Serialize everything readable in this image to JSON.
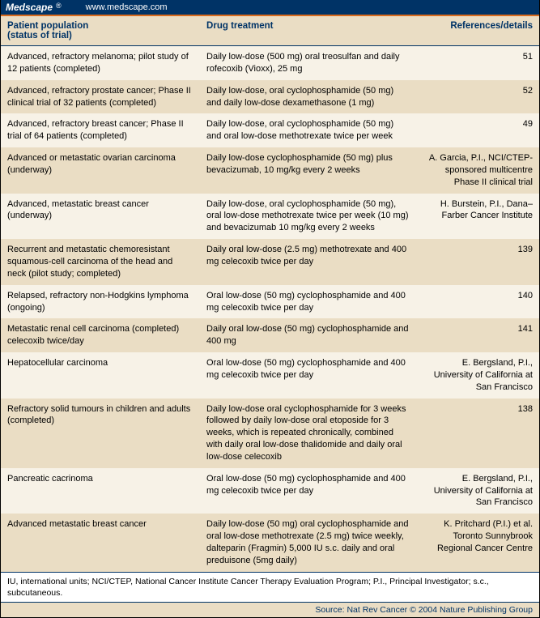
{
  "topbar": {
    "brand": "Medscape",
    "reg": "®",
    "url": "www.medscape.com"
  },
  "headers": {
    "col1a": "Patient population",
    "col1b": "(status of trial)",
    "col2": "Drug treatment",
    "col3": "References/details"
  },
  "rows": [
    {
      "pop": "Advanced, refractory melanoma; pilot study of 12 patients (completed)",
      "drug": "Daily low-dose (500 mg) oral treosulfan and daily rofecoxib (Vioxx), 25 mg",
      "ref": "51"
    },
    {
      "pop": "Advanced, refractory prostate cancer; Phase II clinical trial of 32 patients (completed)",
      "drug": "Daily low-dose, oral cyclophosphamide (50 mg) and daily low-dose dexamethasone (1 mg)",
      "ref": "52"
    },
    {
      "pop": "Advanced, refractory breast cancer; Phase II trial of 64 patients (completed)",
      "drug": "Daily low-dose, oral cyclophosphamide (50 mg) and oral low-dose methotrexate twice per week",
      "ref": "49"
    },
    {
      "pop": "Advanced or metastatic ovarian carcinoma (underway)",
      "drug": "Daily low-dose cyclophosphamide (50 mg) plus bevacizumab, 10 mg/kg every 2 weeks",
      "ref": "A. Garcia, P.I., NCI/CTEP-sponsored multicentre Phase II clinical trial"
    },
    {
      "pop": "Advanced, metastatic breast cancer (underway)",
      "drug": "Daily low-dose, oral cyclophosphamide (50 mg), oral low-dose methotrexate twice per week (10 mg) and bevacizumab 10 mg/kg every 2 weeks",
      "ref": "H. Burstein, P.I., Dana–Farber Cancer Institute"
    },
    {
      "pop": "Recurrent and metastatic chemoresistant squamous-cell carcinoma of the head and neck (pilot study; completed)",
      "drug": "Daily oral low-dose (2.5 mg) methotrexate and 400 mg celecoxib twice per day",
      "ref": "139"
    },
    {
      "pop": "Relapsed, refractory non-Hodgkins lymphoma (ongoing)",
      "drug": "Oral low-dose (50 mg) cyclophosphamide and 400 mg celecoxib twice per day",
      "ref": "140"
    },
    {
      "pop": "Metastatic renal cell carcinoma (completed) celecoxib twice/day",
      "drug": "Daily oral low-dose (50 mg) cyclophosphamide and 400 mg",
      "ref": "141"
    },
    {
      "pop": "Hepatocellular carcinoma",
      "drug": "Oral low-dose (50 mg) cyclophosphamide and 400 mg celecoxib twice per day",
      "ref": "E. Bergsland, P.I., University of California at San Francisco"
    },
    {
      "pop": "Refractory solid tumours in children and adults (completed)",
      "drug": "Daily low-dose oral cyclophosphamide for 3 weeks followed by daily low-dose oral etoposide for 3 weeks, which is repeated chronically, combined with daily oral low-dose thalidomide and daily oral low-dose celecoxib",
      "ref": "138"
    },
    {
      "pop": "Pancreatic cacrinoma",
      "drug": "Oral low-dose (50 mg) cyclophosphamide and 400 mg celecoxib twice per day",
      "ref": "E. Bergsland, P.I., University of California at San Francisco"
    },
    {
      "pop": "Advanced metastatic breast cancer",
      "drug": "Daily low-dose (50 mg) oral cyclophosphamide and oral low-dose methotrexate (2.5 mg) twice weekly, dalteparin (Fragmin) 5,000 IU s.c. daily and oral preduisone (5mg daily)",
      "ref": "K. Pritchard (P.I.) et al. Toronto Sunnybrook Regional Cancer Centre"
    }
  ],
  "abbr": "IU, international units; NCI/CTEP, National Cancer Institute Cancer Therapy Evaluation Program; P.I., Principal Investigator; s.c., subcutaneous.",
  "source": "Source: Nat Rev Cancer © 2004 Nature Publishing Group"
}
